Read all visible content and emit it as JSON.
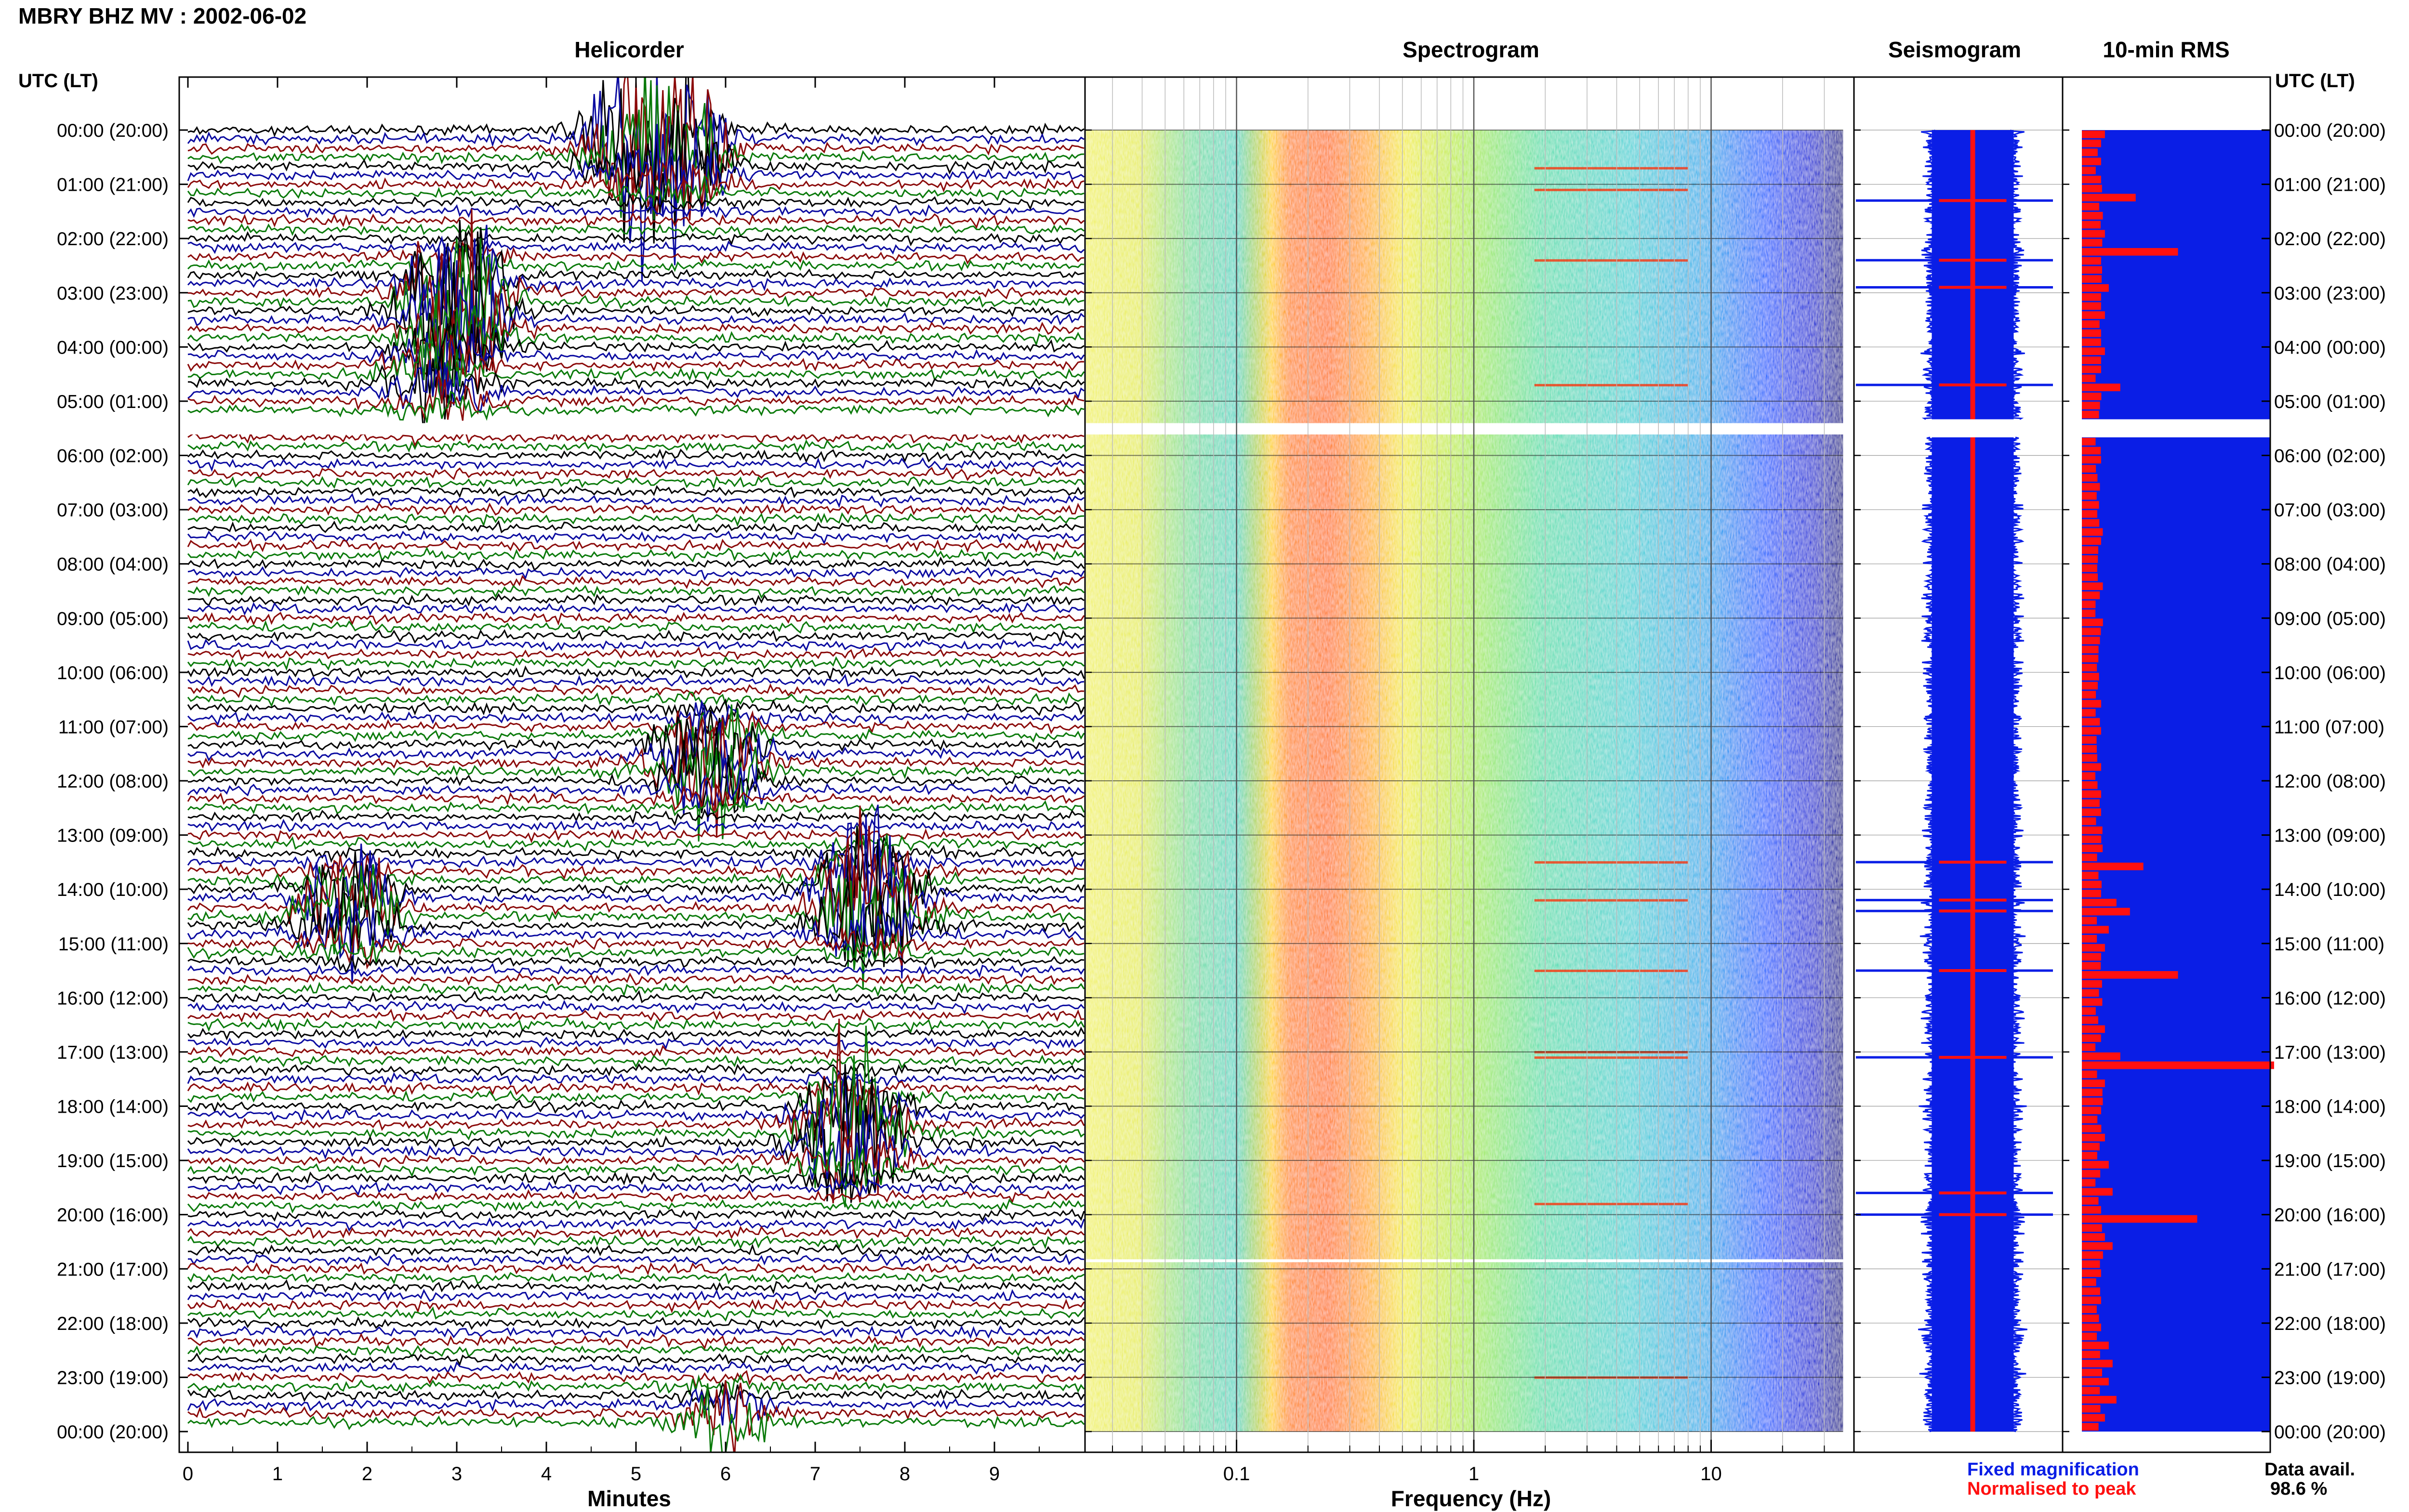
{
  "header": {
    "title": "MBRY BHZ MV : 2002-06-02"
  },
  "panels": {
    "helicorder": "Helicorder",
    "spectrogram": "Spectrogram",
    "seismogram": "Seismogram",
    "rms": "10-min RMS"
  },
  "axis_header": {
    "left": "UTC (LT)",
    "right": "UTC (LT)"
  },
  "legend": {
    "fixed": "Fixed magnification",
    "normalised": "Normalised to peak",
    "fixed_color": "#0a1ee6",
    "normalised_color": "#ff1010"
  },
  "data_avail": {
    "label": "Data avail.",
    "value": "98.6 %"
  },
  "colors": {
    "trace_cycle": [
      "#000000",
      "#0a0aa0",
      "#8b0a0a",
      "#0a7a0a"
    ],
    "seismogram": "#0a1ee6",
    "rms_fixed": "#0a1ee6",
    "rms_normalised": "#ff1010"
  },
  "chart_data": [
    {
      "type": "line",
      "title": "Helicorder",
      "xlabel": "Minutes",
      "ylabel": "UTC (LT)",
      "x_ticks": [
        "0",
        "1",
        "2",
        "3",
        "4",
        "5",
        "6",
        "7",
        "8",
        "9"
      ],
      "xlim": [
        0,
        10
      ],
      "y_ticks": [
        "00:00 (20:00)",
        "01:00 (21:00)",
        "02:00 (22:00)",
        "03:00 (23:00)",
        "04:00 (00:00)",
        "05:00 (01:00)",
        "06:00 (02:00)",
        "07:00 (03:00)",
        "08:00 (04:00)",
        "09:00 (05:00)",
        "10:00 (06:00)",
        "11:00 (07:00)",
        "12:00 (08:00)",
        "13:00 (09:00)",
        "14:00 (10:00)",
        "15:00 (11:00)",
        "16:00 (12:00)",
        "17:00 (13:00)",
        "18:00 (14:00)",
        "19:00 (15:00)",
        "20:00 (16:00)",
        "21:00 (17:00)",
        "22:00 (18:00)",
        "23:00 (19:00)",
        "00:00 (20:00)"
      ],
      "lines_per_hour": 6,
      "data_gap": {
        "from": "05:20",
        "to": "05:40"
      },
      "events": [
        {
          "hour": 0.1,
          "minute": 5.0,
          "amplitude": 4.5
        },
        {
          "hour": 0.35,
          "minute": 5.5,
          "amplitude": 4.0
        },
        {
          "hour": 3.2,
          "minute": 3.0,
          "amplitude": 5.5
        },
        {
          "hour": 4.6,
          "minute": 2.8,
          "amplitude": 2.0
        },
        {
          "hour": 11.6,
          "minute": 5.8,
          "amplitude": 3.5
        },
        {
          "hour": 14.4,
          "minute": 1.8,
          "amplitude": 3.0
        },
        {
          "hour": 14.2,
          "minute": 7.6,
          "amplitude": 5.0
        },
        {
          "hour": 18.5,
          "minute": 7.4,
          "amplitude": 4.5
        },
        {
          "hour": 23.9,
          "minute": 6.0,
          "amplitude": 1.8
        }
      ]
    },
    {
      "type": "heatmap",
      "title": "Spectrogram",
      "xlabel": "Frequency (Hz)",
      "x_scale": "log",
      "xlim": [
        0.025,
        40
      ],
      "x_tick_labels": [
        "0.1",
        "1",
        "10"
      ],
      "x_tick_values": [
        0.1,
        1,
        10
      ],
      "peak_band_hz": [
        0.22,
        0.6
      ],
      "secondary_band_hz": [
        1.5,
        6
      ],
      "colormap": [
        "#ffffff",
        "#00008b",
        "#0000ff",
        "#00a0ff",
        "#40e0d0",
        "#ffff00",
        "#ff8000",
        "#ff0000"
      ]
    },
    {
      "type": "line",
      "title": "Seismogram",
      "y_ticks": [
        "00:00",
        "01:00",
        "02:00",
        "03:00",
        "04:00",
        "05:00",
        "06:00",
        "07:00",
        "08:00",
        "09:00",
        "10:00",
        "11:00",
        "12:00",
        "13:00",
        "14:00",
        "15:00",
        "16:00",
        "17:00",
        "18:00",
        "19:00",
        "20:00",
        "21:00",
        "22:00",
        "23:00",
        "00:00"
      ],
      "spikes_hours": [
        1.3,
        2.4,
        2.9,
        4.7,
        13.5,
        14.2,
        14.4,
        15.5,
        17.1,
        19.6,
        20.0
      ]
    },
    {
      "type": "bar",
      "title": "10-min RMS",
      "series": [
        {
          "name": "Fixed magnification",
          "values": [
            1.0
          ]
        },
        {
          "name": "Normalised to peak",
          "hours": [
            0.0,
            0.2,
            0.5,
            0.8,
            1.0,
            1.2,
            1.5,
            1.8,
            2.0,
            2.2,
            2.4,
            2.6,
            2.8,
            3.0,
            3.2,
            3.4,
            3.6,
            3.8,
            4.0,
            4.2,
            4.4,
            4.6,
            4.7,
            4.9,
            6.0,
            6.5,
            7.0,
            7.5,
            8.0,
            8.5,
            9.0,
            9.5,
            10.0,
            10.5,
            11.0,
            11.5,
            12.0,
            12.5,
            13.0,
            13.2,
            13.5,
            14.0,
            14.2,
            14.4,
            14.6,
            15.0,
            15.5,
            16.0,
            16.5,
            17.0,
            17.1,
            17.5,
            18.0,
            18.5,
            19.0,
            19.5,
            19.8,
            20.0,
            20.3,
            20.5,
            21.0,
            21.5,
            22.0,
            22.3,
            22.6,
            23.0,
            23.3,
            23.6
          ],
          "values": [
            0.12,
            0.1,
            0.1,
            0.1,
            0.1,
            0.28,
            0.1,
            0.12,
            0.1,
            0.5,
            0.1,
            0.1,
            0.14,
            0.1,
            0.1,
            0.12,
            0.1,
            0.1,
            0.12,
            0.1,
            0.1,
            0.14,
            0.2,
            0.1,
            0.1,
            0.08,
            0.08,
            0.1,
            0.08,
            0.08,
            0.1,
            0.08,
            0.08,
            0.08,
            0.1,
            0.08,
            0.08,
            0.1,
            0.08,
            0.1,
            0.32,
            0.1,
            0.18,
            0.25,
            0.14,
            0.12,
            0.5,
            0.1,
            0.12,
            0.2,
            1.0,
            0.12,
            0.1,
            0.12,
            0.14,
            0.16,
            0.1,
            0.6,
            0.12,
            0.16,
            0.1,
            0.1,
            0.1,
            0.14,
            0.16,
            0.14,
            0.18,
            0.12
          ]
        }
      ],
      "max_normalised_hour": 17.1
    }
  ]
}
